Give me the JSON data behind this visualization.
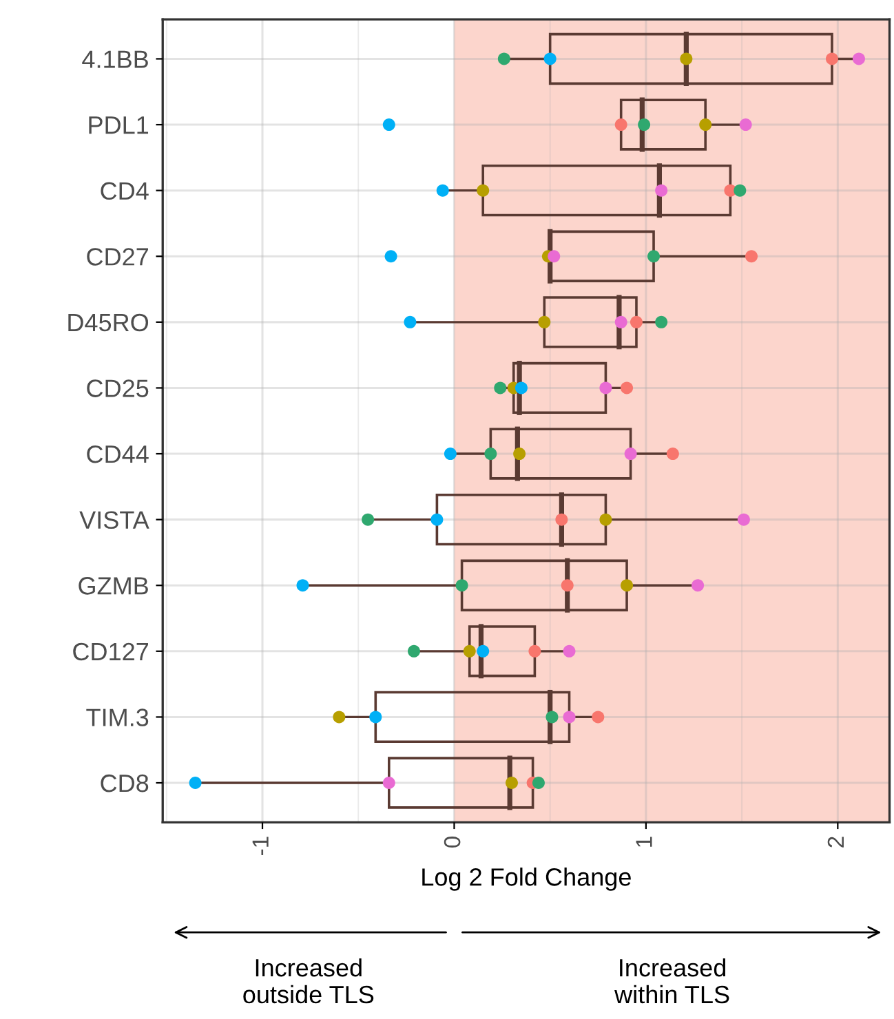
{
  "chart_data": {
    "type": "box",
    "orientation": "horizontal",
    "categories": [
      "4.1BB",
      "PDL1",
      "CD4",
      "CD27",
      "D45RO",
      "CD25",
      "CD44",
      "VISTA",
      "GZMB",
      "CD127",
      "TIM.3",
      "CD8"
    ],
    "xlabel": "Log 2 Fold Change",
    "xlim": [
      -1.52,
      2.27
    ],
    "xticks": [
      -1,
      0,
      1,
      2
    ],
    "grid": true,
    "bands": [
      {
        "axis": "x",
        "from": 0,
        "to": 2.27,
        "color": "#fcd5cc"
      }
    ],
    "series": [
      {
        "type": "box",
        "color": "#5a3a32",
        "boxes": [
          {
            "low": 0.26,
            "q1": 0.5,
            "median": 1.21,
            "q3": 1.97,
            "high": 2.11
          },
          {
            "low": 0.87,
            "q1": 0.87,
            "median": 0.98,
            "q3": 1.31,
            "high": 1.52
          },
          {
            "low": -0.06,
            "q1": 0.15,
            "median": 1.07,
            "q3": 1.44,
            "high": 1.49
          },
          {
            "low": 0.5,
            "q1": 0.5,
            "median": 0.5,
            "q3": 1.04,
            "high": 1.55
          },
          {
            "low": -0.23,
            "q1": 0.47,
            "median": 0.86,
            "q3": 0.95,
            "high": 1.08
          },
          {
            "low": 0.24,
            "q1": 0.31,
            "median": 0.34,
            "q3": 0.79,
            "high": 0.9
          },
          {
            "low": -0.02,
            "q1": 0.19,
            "median": 0.33,
            "q3": 0.92,
            "high": 1.14
          },
          {
            "low": -0.45,
            "q1": -0.09,
            "median": 0.56,
            "q3": 0.79,
            "high": 1.51
          },
          {
            "low": -0.79,
            "q1": 0.04,
            "median": 0.59,
            "q3": 0.9,
            "high": 1.27
          },
          {
            "low": -0.21,
            "q1": 0.08,
            "median": 0.14,
            "q3": 0.42,
            "high": 0.6
          },
          {
            "low": -0.6,
            "q1": -0.41,
            "median": 0.5,
            "q3": 0.6,
            "high": 0.75
          },
          {
            "low": -1.35,
            "q1": -0.34,
            "median": 0.29,
            "q3": 0.41,
            "high": 0.44
          }
        ]
      },
      {
        "type": "scatter",
        "color": "#f8766d",
        "x": [
          "4.1BB",
          "PDL1",
          "CD4",
          "CD27",
          "D45RO",
          "CD25",
          "CD44",
          "VISTA",
          "GZMB",
          "CD127",
          "TIM.3",
          "CD8"
        ],
        "values": [
          1.97,
          0.87,
          1.44,
          1.55,
          0.95,
          0.9,
          1.14,
          0.56,
          0.59,
          0.42,
          0.75,
          0.41
        ]
      },
      {
        "type": "scatter",
        "color": "#b79f00",
        "x": [
          "4.1BB",
          "PDL1",
          "CD4",
          "CD27",
          "D45RO",
          "CD25",
          "CD44",
          "VISTA",
          "GZMB",
          "CD127",
          "TIM.3",
          "CD8"
        ],
        "values": [
          1.21,
          1.31,
          0.15,
          0.49,
          0.47,
          0.31,
          0.34,
          0.79,
          0.9,
          0.08,
          -0.6,
          0.3
        ]
      },
      {
        "type": "scatter",
        "color": "#2fa86f",
        "x": [
          "4.1BB",
          "PDL1",
          "CD4",
          "CD27",
          "D45RO",
          "CD25",
          "CD44",
          "VISTA",
          "GZMB",
          "CD127",
          "TIM.3",
          "CD8"
        ],
        "values": [
          0.26,
          0.99,
          1.49,
          1.04,
          1.08,
          0.24,
          0.19,
          -0.45,
          0.04,
          -0.21,
          0.51,
          0.44
        ]
      },
      {
        "type": "scatter",
        "color": "#00b0f6",
        "x": [
          "4.1BB",
          "PDL1",
          "CD4",
          "CD27",
          "D45RO",
          "CD25",
          "CD44",
          "VISTA",
          "GZMB",
          "CD127",
          "TIM.3",
          "CD8"
        ],
        "values": [
          0.5,
          -0.34,
          -0.06,
          -0.33,
          -0.23,
          0.35,
          -0.02,
          -0.09,
          -0.79,
          0.15,
          -0.41,
          -1.35
        ]
      },
      {
        "type": "scatter",
        "color": "#e96bd3",
        "x": [
          "4.1BB",
          "PDL1",
          "CD4",
          "CD27",
          "D45RO",
          "CD25",
          "CD44",
          "VISTA",
          "GZMB",
          "CD127",
          "TIM.3",
          "CD8"
        ],
        "values": [
          2.11,
          1.52,
          1.08,
          0.52,
          0.87,
          0.79,
          0.92,
          1.51,
          1.27,
          0.6,
          0.6,
          -0.34
        ]
      }
    ],
    "annotations": [
      "Increased\noutside TLS",
      "Increased\nwithin TLS"
    ]
  }
}
